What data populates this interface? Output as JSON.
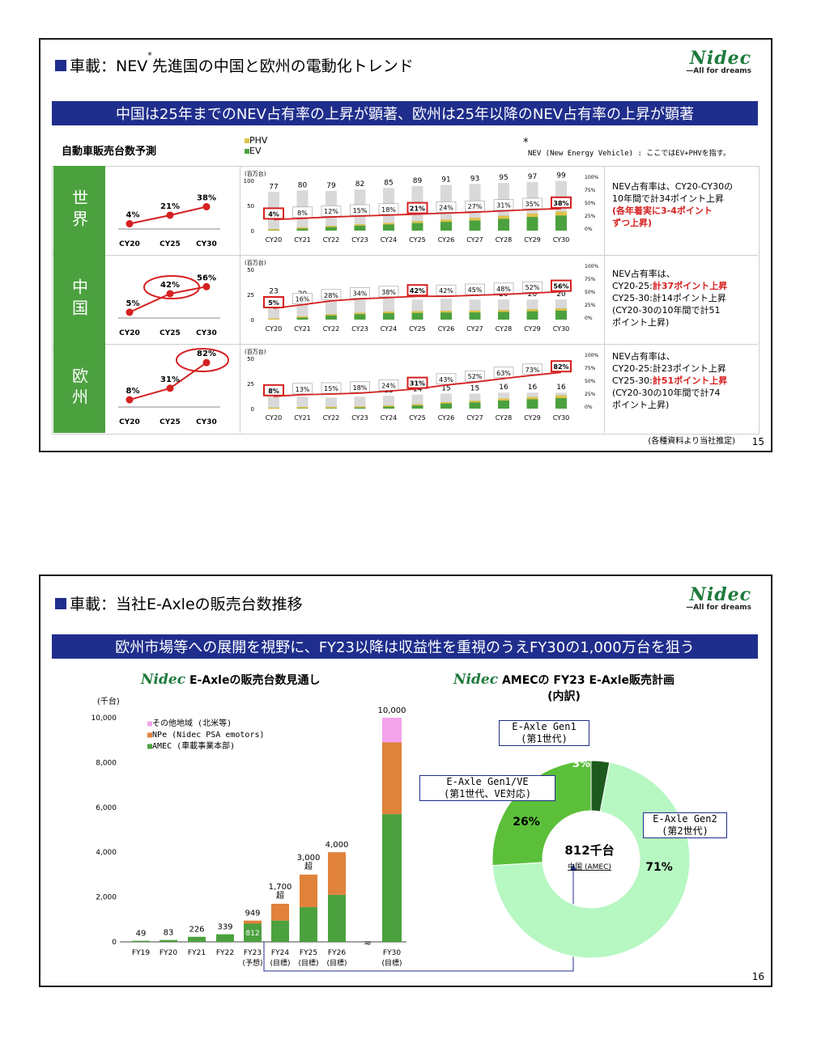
{
  "slide1": {
    "title_prefix": "車載：NEV",
    "title_mark": "*",
    "title_suffix": "先進国の中国と欧州の電動化トレンド",
    "banner": "中国は25年までのNEV占有率の上昇が顕著、欧州は25年以降のNEV占有率の上昇が顕著",
    "section_label": "自動車販売台数予測",
    "legend_phv": "PHV",
    "legend_ev": "EV",
    "footnote_mark": "*",
    "footnote": "NEV (New Energy Vehicle) : ここではEV+PHVを指す。",
    "unit": "(百万台)",
    "source": "(各種資料より当社推定)",
    "page": "15",
    "years": [
      "CY20",
      "CY21",
      "CY22",
      "CY23",
      "CY24",
      "CY25",
      "CY26",
      "CY27",
      "CY28",
      "CY29",
      "CY30"
    ],
    "mini_years": [
      "CY20",
      "CY25",
      "CY30"
    ],
    "regions": [
      {
        "name": "世界",
        "mini": [
          "4%",
          "21%",
          "38%"
        ],
        "mini_values": [
          4,
          21,
          38
        ],
        "yticks": [
          "100",
          "50",
          "0"
        ],
        "totals": [
          "77",
          "80",
          "79",
          "82",
          "85",
          "89",
          "91",
          "93",
          "95",
          "97",
          "99"
        ],
        "totals_values": [
          77,
          80,
          79,
          82,
          85,
          89,
          91,
          93,
          95,
          97,
          99
        ],
        "ymax": 100,
        "shares": [
          "4%",
          "8%",
          "12%",
          "15%",
          "18%",
          "21%",
          "24%",
          "27%",
          "31%",
          "35%",
          "38%"
        ],
        "share_values": [
          4,
          8,
          12,
          15,
          18,
          21,
          24,
          27,
          31,
          35,
          38
        ],
        "note_lines": [
          "NEV占有率は、CY20-CY30の",
          "10年間で計34ポイント上昇"
        ],
        "note_red": [
          "(各年着実に3-4ポイント",
          "ずつ上昇)"
        ]
      },
      {
        "name": "中国",
        "mini": [
          "5%",
          "42%",
          "56%"
        ],
        "mini_values": [
          5,
          42,
          56
        ],
        "yticks": [
          "50",
          "25",
          "0"
        ],
        "totals": [
          "23",
          "20",
          "19",
          "20",
          "21",
          "20",
          "21",
          "20",
          "20",
          "20",
          "20"
        ],
        "totals_values": [
          23,
          20,
          19,
          20,
          21,
          20,
          21,
          20,
          20,
          20,
          20
        ],
        "ymax": 50,
        "shares": [
          "5%",
          "16%",
          "28%",
          "34%",
          "38%",
          "42%",
          "42%",
          "45%",
          "48%",
          "52%",
          "56%"
        ],
        "share_values": [
          5,
          16,
          28,
          34,
          38,
          42,
          42,
          45,
          48,
          52,
          56
        ],
        "note_l1": "NEV占有率は、",
        "note_l2a": "CY20-25:",
        "note_l2b": "計37ポイント上昇",
        "note_l3": "CY25-30:計14ポイント上昇",
        "note_l4": "(CY20-30の10年間で計51",
        "note_l5": "ポイント上昇)"
      },
      {
        "name": "欧州",
        "mini": [
          "8%",
          "31%",
          "82%"
        ],
        "mini_values": [
          8,
          31,
          82
        ],
        "yticks": [
          "50",
          "25",
          "0"
        ],
        "totals": [
          "12",
          "12",
          "11",
          "12",
          "13",
          "14",
          "15",
          "15",
          "16",
          "16",
          "16"
        ],
        "totals_values": [
          12,
          12,
          11,
          12,
          13,
          14,
          15,
          15,
          16,
          16,
          16
        ],
        "ymax": 50,
        "shares": [
          "8%",
          "13%",
          "15%",
          "18%",
          "24%",
          "31%",
          "43%",
          "52%",
          "63%",
          "73%",
          "82%"
        ],
        "share_values": [
          8,
          13,
          15,
          18,
          24,
          31,
          43,
          52,
          63,
          73,
          82
        ],
        "note_l1": "NEV占有率は、",
        "note_l2": "CY20-25:計23ポイント上昇",
        "note_l3a": "CY25-30:",
        "note_l3b": "計51ポイント上昇",
        "note_l4": "(CY20-30の10年間で計74",
        "note_l5": "ポイント上昇)"
      }
    ],
    "right_ticks": [
      "100%",
      "75%",
      "50%",
      "25%",
      "0%"
    ]
  },
  "slide2": {
    "title": "車載：当社E-Axleの販売台数推移",
    "banner": "欧州市場等への展開を視野に、FY23以降は収益性を重視のうえFY30の1,000万台を狙う",
    "left_heading_logo": "Nidec",
    "left_heading": "E-Axleの販売台数見通し",
    "right_heading_logo": "Nidec",
    "right_heading_l1": "AMECの FY23 E-Axle販売計画",
    "right_heading_l2": "(内訳)",
    "page": "16",
    "chart_data": {
      "type": "bar",
      "unit": "(千台)",
      "ylim": [
        0,
        10000
      ],
      "yticks": [
        "10,000",
        "8,000",
        "6,000",
        "4,000",
        "2,000",
        "0"
      ],
      "categories": [
        "FY19",
        "FY20",
        "FY21",
        "FY22",
        "FY23",
        "FY24",
        "FY25",
        "FY26",
        "FY30"
      ],
      "sublabels": [
        "",
        "",
        "",
        "",
        "(予想)",
        "(目標)",
        "(目標)",
        "(目標)",
        "(目標)"
      ],
      "totals_text": [
        "49",
        "83",
        "226",
        "339",
        "949",
        "1,700",
        "3,000",
        "4,000",
        "10,000"
      ],
      "over_text": [
        "",
        "",
        "",
        "",
        "",
        "超",
        "超",
        "",
        ""
      ],
      "series": [
        {
          "name": "AMEC (車載事業本部)",
          "values": [
            49,
            83,
            226,
            339,
            812,
            950,
            1550,
            2100,
            5700
          ]
        },
        {
          "name": "NPe (Nidec PSA emotors)",
          "values": [
            0,
            0,
            0,
            0,
            137,
            750,
            1450,
            1900,
            3200
          ]
        },
        {
          "name": "その他地域 (北米等)",
          "values": [
            0,
            0,
            0,
            0,
            0,
            0,
            0,
            0,
            1100
          ]
        }
      ],
      "fy23_amec_label": "812",
      "axis_break": "≈"
    },
    "donut": {
      "center_value": "812千台",
      "center_sub": "中国 (AMEC)",
      "slices": [
        {
          "label_l1": "E-Axle Gen2",
          "label_l2": "(第2世代)",
          "value": 71,
          "pct": "71%",
          "color": "#b7f7c2"
        },
        {
          "label_l1": "E-Axle Gen1/VE",
          "label_l2": "(第1世代、VE対応)",
          "value": 26,
          "pct": "26%",
          "color": "#5bbf3a"
        },
        {
          "label_l1": "E-Axle Gen1",
          "label_l2": "(第1世代)",
          "value": 3,
          "pct": "3%",
          "color": "#1e5a1e"
        }
      ]
    }
  },
  "logo": {
    "name": "Nidec",
    "tagline": "—All for dreams"
  },
  "colors": {
    "navy": "#1f2e8c",
    "green": "#4ca13f",
    "ev": "#4ca13f",
    "phv": "#e0c24a",
    "bar_gray": "#d9d9d9",
    "red": "#d52020",
    "orange": "#e0823a",
    "pink": "#f2a3ea"
  }
}
